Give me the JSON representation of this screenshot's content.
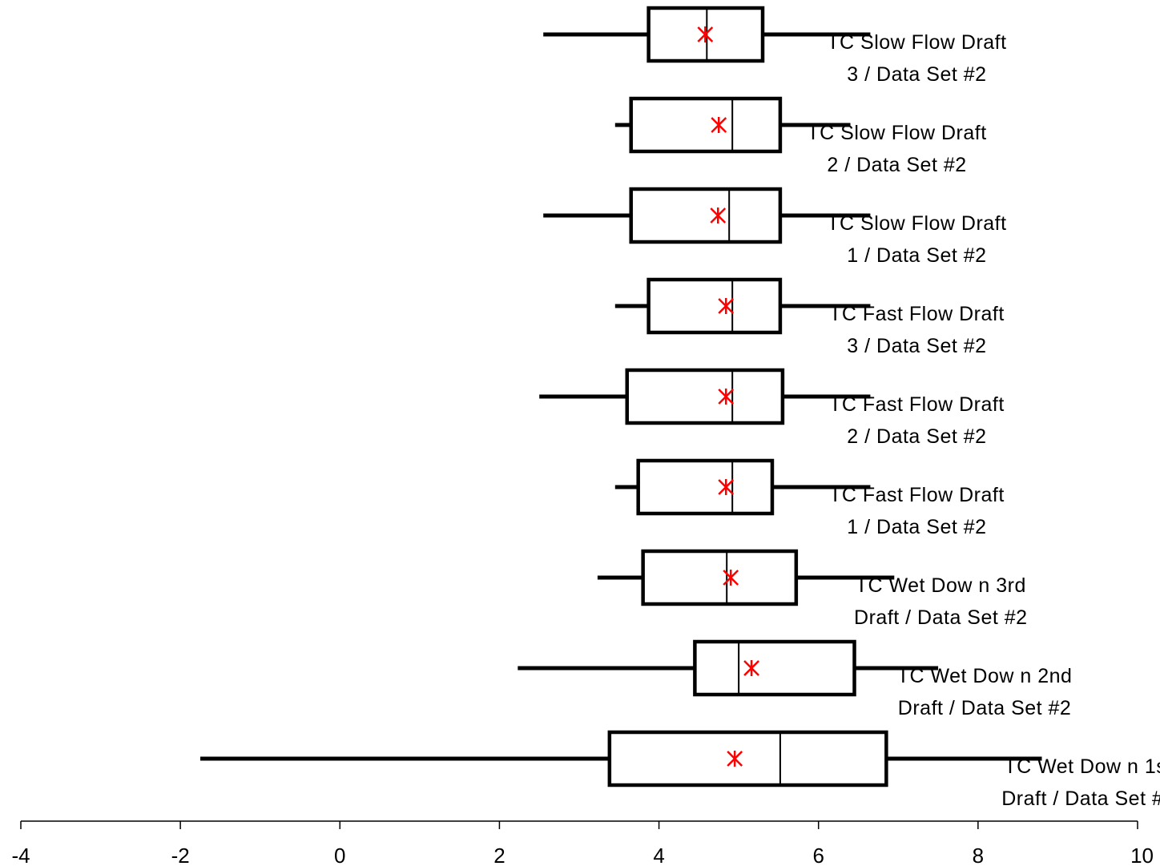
{
  "chart_data": {
    "type": "boxplot",
    "orientation": "horizontal",
    "xlim": [
      -4,
      10
    ],
    "x_ticks": [
      "-4",
      "-2",
      "0",
      "2",
      "4",
      "6",
      "8",
      "10"
    ],
    "grid": false,
    "colors": {
      "box": "#000000",
      "mean_marker": "#ff0000"
    },
    "series": [
      {
        "label_lines": [
          "TC Slow  Flow  Draft",
          "3 / Data Set #2"
        ],
        "whisker_low": 2.55,
        "q1": 3.87,
        "median": 4.6,
        "q3": 5.3,
        "whisker_high": 6.65,
        "mean": 4.58
      },
      {
        "label_lines": [
          "TC Slow  Flow  Draft",
          "2 / Data Set #2"
        ],
        "whisker_low": 3.45,
        "q1": 3.65,
        "median": 4.92,
        "q3": 5.52,
        "whisker_high": 6.4,
        "mean": 4.75
      },
      {
        "label_lines": [
          "TC Slow  Flow  Draft",
          "1 / Data Set #2"
        ],
        "whisker_low": 2.55,
        "q1": 3.65,
        "median": 4.88,
        "q3": 5.52,
        "whisker_high": 6.65,
        "mean": 4.74
      },
      {
        "label_lines": [
          "TC Fast Flow  Draft",
          "3 / Data Set #2"
        ],
        "whisker_low": 3.45,
        "q1": 3.87,
        "median": 4.92,
        "q3": 5.52,
        "whisker_high": 6.65,
        "mean": 4.84
      },
      {
        "label_lines": [
          "TC Fast Flow  Draft",
          "2 / Data Set #2"
        ],
        "whisker_low": 2.5,
        "q1": 3.6,
        "median": 4.92,
        "q3": 5.55,
        "whisker_high": 6.65,
        "mean": 4.84
      },
      {
        "label_lines": [
          "TC Fast Flow  Draft",
          "1 / Data Set #2"
        ],
        "whisker_low": 3.45,
        "q1": 3.74,
        "median": 4.92,
        "q3": 5.42,
        "whisker_high": 6.65,
        "mean": 4.84
      },
      {
        "label_lines": [
          "TC Wet Dow n 3rd",
          "Draft / Data Set #2"
        ],
        "whisker_low": 3.23,
        "q1": 3.8,
        "median": 4.85,
        "q3": 5.72,
        "whisker_high": 6.95,
        "mean": 4.9
      },
      {
        "label_lines": [
          "TC Wet Dow n 2nd",
          "Draft / Data Set #2"
        ],
        "whisker_low": 2.23,
        "q1": 4.45,
        "median": 5.0,
        "q3": 6.45,
        "whisker_high": 7.5,
        "mean": 5.16
      },
      {
        "label_lines": [
          "TC Wet Dow n 1st",
          "Draft / Data Set #2"
        ],
        "whisker_low": -1.75,
        "q1": 3.38,
        "median": 5.52,
        "q3": 6.85,
        "whisker_high": 8.8,
        "mean": 4.95
      }
    ]
  }
}
